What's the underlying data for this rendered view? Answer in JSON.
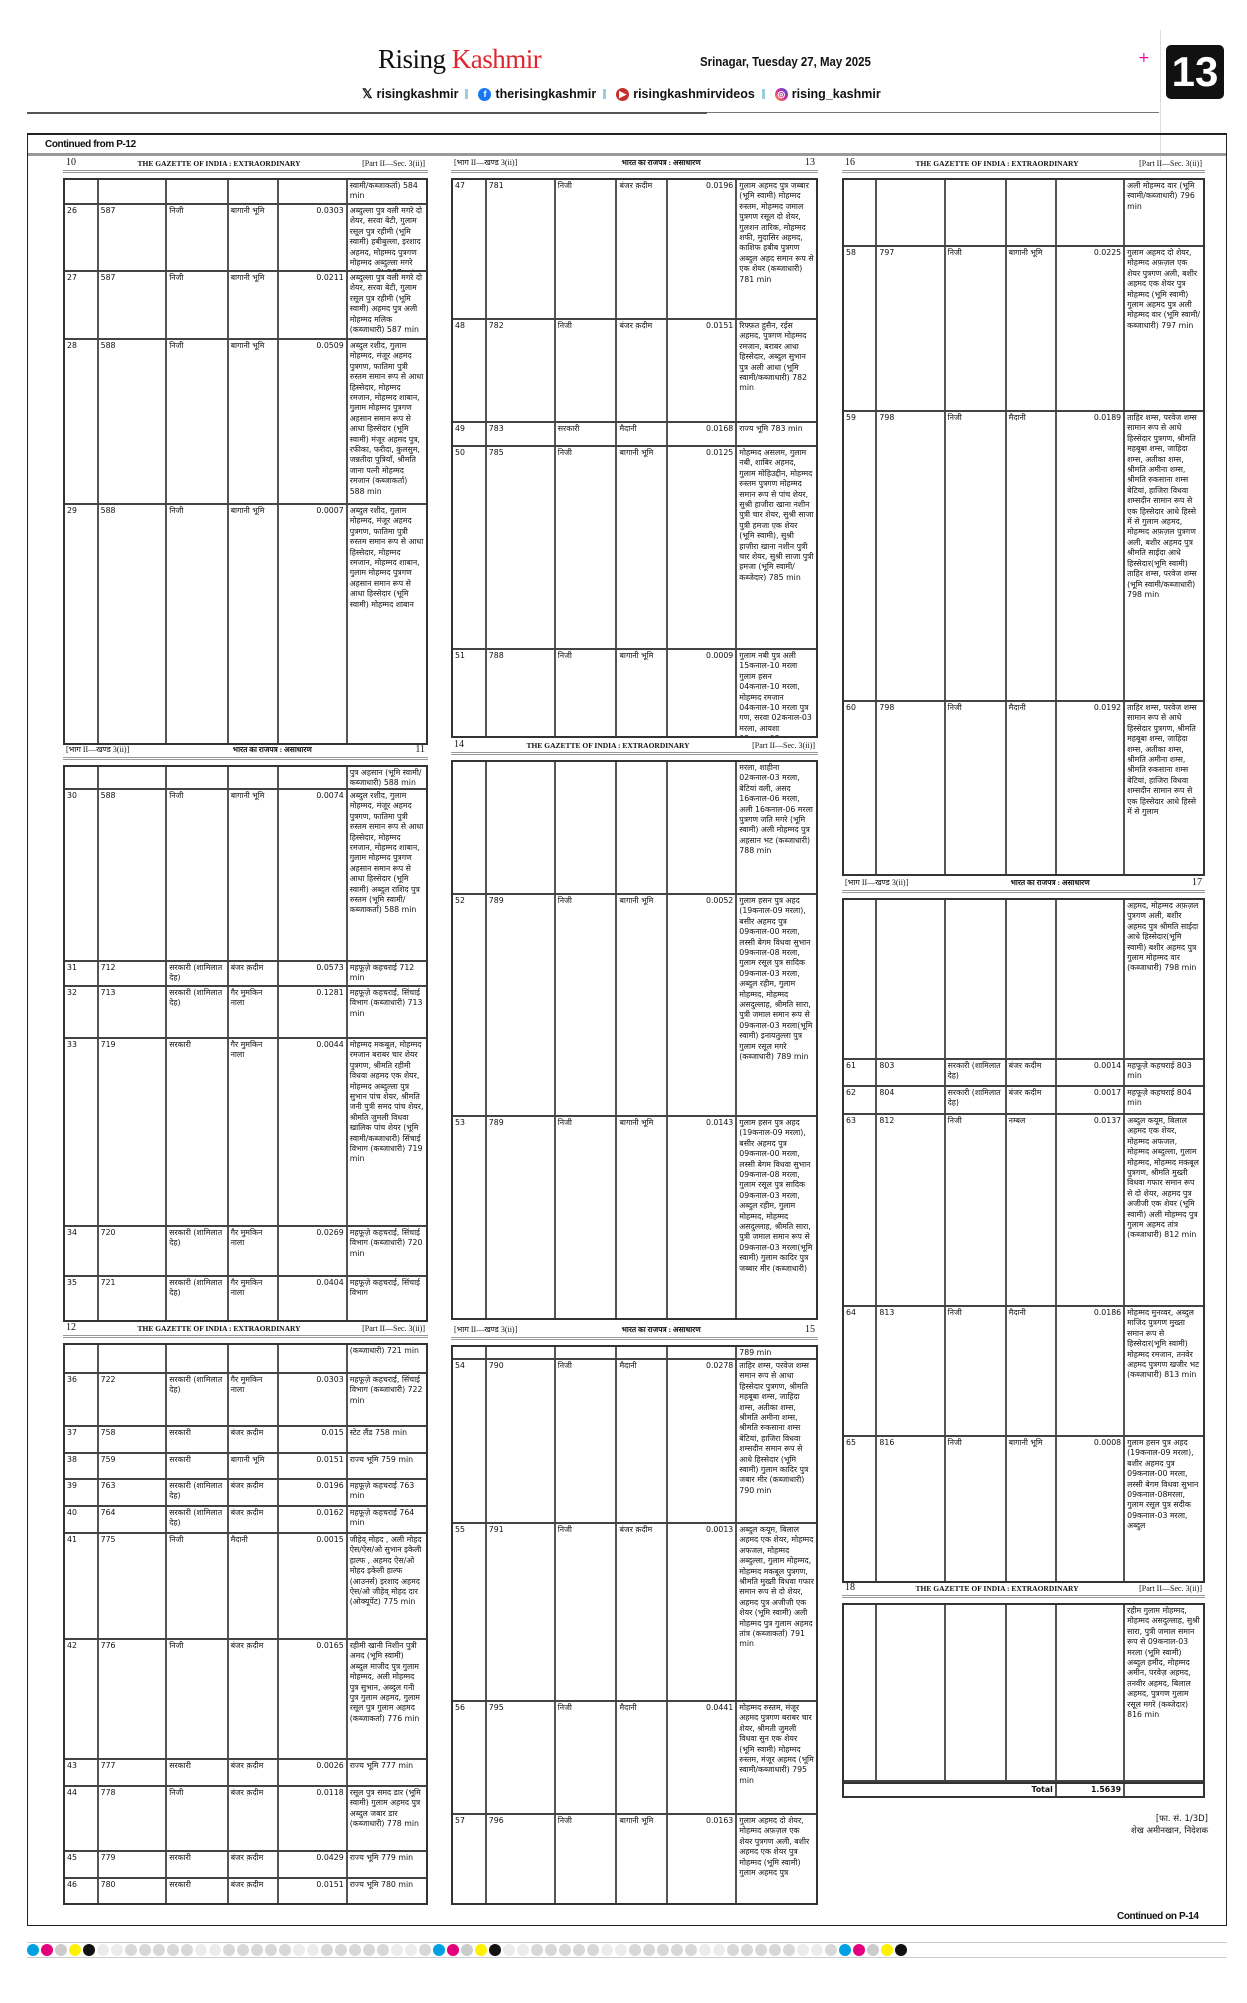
{
  "masthead": {
    "brand_first": "Rising",
    "brand_second": "Kashmir",
    "dateline": "Srinagar, Tuesday 27, May 2025",
    "page_number": "13",
    "brand_color": "#e0262d",
    "socials": [
      {
        "icon": "x-icon",
        "handle": "risingkashmir"
      },
      {
        "icon": "facebook-icon",
        "handle": "therisingkashmir",
        "color": "#1877f2"
      },
      {
        "icon": "youtube-icon",
        "handle": "risingkashmirvideos",
        "color": "#c4302b"
      },
      {
        "icon": "instagram-icon",
        "handle": "rising_kashmir",
        "color": "#d6249f"
      }
    ]
  },
  "continued_from": "Continued from P-12",
  "continued_on": "Continued on P-14",
  "gazette": {
    "en_title": "THE GAZETTE OF INDIA : EXTRAORDINARY",
    "en_part": "[Part II—Sec. 3(ii)]",
    "hi_title": "भारत का राजपत्र : असाधारण",
    "hi_part": "[भाग II—खण्ड 3(ii)]"
  },
  "pages": [
    {
      "no": "10",
      "lang": "en",
      "rows": [
        {
          "owner": "स्वामी/कब्जाकर्ता) 584 min"
        },
        {
          "sl": "26",
          "khasra": "587",
          "ownership": "निजी",
          "land": "बागानी भूमि",
          "area": "0.0303",
          "owner": "अब्दुल्ला पुत्र वली मगरे दो शेयर, सरवा बेटी, गुलाम रसूल पुत्र रहीमी (भूमि स्वामी) हबीबुल्ला, इरशाद अहमद, मोहम्मद पुत्रगण मोहम्मद अब्दुल्ला मगरे (कब्जाधारी) 587 min"
        },
        {
          "sl": "27",
          "khasra": "587",
          "ownership": "निजी",
          "land": "बागानी भूमि",
          "area": "0.0211",
          "owner": "अब्दुल्ला पुत्र वली मगरे दो शेयर, सरवा बेटी, गुलाम रसूल पुत्र रहीमी (भूमि स्वामी) अहमद पुत्र अली मोहम्मद मलिक (कब्जाधारी) 587 min"
        },
        {
          "sl": "28",
          "khasra": "588",
          "ownership": "निजी",
          "land": "बागानी भूमि",
          "area": "0.0509",
          "owner": "अब्दुल रशीद, गुलाम मोहम्मद, मंजूर अहमद पुत्रगण, फातिमा पुत्री रुस्तम समान रूप से आधा हिस्सेदार, मोहम्मद रमजान, मोहम्मद शाबान, गुलाम मोहम्मद पुत्रगण अहसान समान रूप से आधा हिस्सेदार (भूमि स्वामी) मंजूर अहमद पुत्र, रफीका, फरीदा, कुलसुम, जन्नतीदा पुत्रियाँ, श्रीमति जाना पत्नी मोहम्मद रमजान (कब्जाकर्ता) 588 min"
        },
        {
          "sl": "29",
          "khasra": "588",
          "ownership": "निजी",
          "land": "बागानी भूमि",
          "area": "0.0007",
          "owner": "अब्दुल रशीद, गुलाम मोहम्मद, मंजूर अहमद पुत्रगण, फातिमा पुत्री रुस्तम समान रूप से आधा हिस्सेदार, मोहम्मद रमजान, मोहम्मद शाबान, गुलाम मोहम्मद पुत्रगण अहसान समान रूप से आधा हिस्सेदार (भूमि स्वामी) मोहम्मद शाबान"
        }
      ]
    },
    {
      "no": "11",
      "lang": "hi",
      "rows": [
        {
          "owner": "पुत्र अहसान (भूमि स्वामी/कब्जाधारी) 588 min"
        },
        {
          "sl": "30",
          "khasra": "588",
          "ownership": "निजी",
          "land": "बागानी भूमि",
          "area": "0.0074",
          "owner": "अब्दुल रशीद, गुलाम मोहम्मद, मंजूर अहमद पुत्रगण, फातिमा पुत्री रुस्तम समान रूप से आधा हिस्सेदार, मोहम्मद रमजान, मोहम्मद शाबान, गुलाम मोहम्मद पुत्रगण अहसान समान रूप से आधा हिस्सेदार (भूमि स्वामी) अब्दुल राशिद पुत्र रुस्तम (भूमि स्वामी/कब्जाकर्ता) 588 min"
        },
        {
          "sl": "31",
          "khasra": "712",
          "ownership": "सरकारी (शामिलात देह)",
          "land": "बंजर क़दीम",
          "area": "0.0573",
          "owner": "महफूज़े कहचराई 712 min"
        },
        {
          "sl": "32",
          "khasra": "713",
          "ownership": "सरकारी (शामिलात देह)",
          "land": "गैर मुमकिन नाला",
          "area": "0.1281",
          "owner": "महफूज़े कहचराई, सिंचाई विभाग (कब्जाधारी) 713 min"
        },
        {
          "sl": "33",
          "khasra": "719",
          "ownership": "सरकारी",
          "land": "गैर मुमकिन नाला",
          "area": "0.0044",
          "owner": "मोहम्मद मकबूल, मोहम्मद रमजान बराबर चार शेयर पुत्रगण, श्रीमति रहीमी विधवा अहमद एक शेयर, मोहम्मद अब्दुल्ला पुत्र सुभान पांच शेयर, श्रीमति जनी पुत्री समद पांच शेयर, श्रीमति जुमली विधवा खालिक पांच शेयर (भूमि स्वामी/कब्जाधारी) सिंचाई विभाग (कब्जाधारी) 719 min"
        },
        {
          "sl": "34",
          "khasra": "720",
          "ownership": "सरकारी (शामिलात देह)",
          "land": "गैर मुमकिन नाला",
          "area": "0.0269",
          "owner": "महफूज़े कहचराई, सिंचाई विभाग (कब्जाधारी) 720 min"
        },
        {
          "sl": "35",
          "khasra": "721",
          "ownership": "सरकारी (शामिलात देह)",
          "land": "गैर मुमकिन नाला",
          "area": "0.0404",
          "owner": "महफूज़े कहचराई, सिंचाई विभाग"
        }
      ]
    },
    {
      "no": "12",
      "lang": "en",
      "rows": [
        {
          "owner": "(कब्जाधारी) 721 min"
        },
        {
          "sl": "36",
          "khasra": "722",
          "ownership": "सरकारी (शामिलात देह)",
          "land": "गैर मुमकिन नाला",
          "area": "0.0303",
          "owner": "महफूज़े कहचराई, सिंचाई विभाग (कब्जाधारी) 722 min"
        },
        {
          "sl": "37",
          "khasra": "758",
          "ownership": "सरकारी",
          "land": "बंजर क़दीम",
          "area": "0.015",
          "owner": "स्टेट लैंड 758 min"
        },
        {
          "sl": "38",
          "khasra": "759",
          "ownership": "सरकारी",
          "land": "बागानी भूमि",
          "area": "0.0151",
          "owner": "राज्य भूमि 759 min"
        },
        {
          "sl": "39",
          "khasra": "763",
          "ownership": "सरकारी (शामिलात देह)",
          "land": "बंजर क़दीम",
          "area": "0.0196",
          "owner": "महफूज़े कहचराई 763 min"
        },
        {
          "sl": "40",
          "khasra": "764",
          "ownership": "सरकारी (शामिलात देह)",
          "land": "बंजर क़दीम",
          "area": "0.0162",
          "owner": "महफूज़े कहचराई 764 min"
        },
        {
          "sl": "41",
          "khasra": "775",
          "ownership": "निजी",
          "land": "मैदानी",
          "area": "0.0015",
          "owner": "जीहेव् मोहद , अली मोहद ऐस/ऐस/ओ सुभान इकेली हाल्फ , अहमद ऐस/ओ मोहद इकेली हाल्फ (आउनर्स) इरशाद अहमद ऐस/ओ जीहेव् मोहद दार (ओक्यूपेंट) 775 min"
        },
        {
          "sl": "42",
          "khasra": "776",
          "ownership": "निजी",
          "land": "बंजर क़दीम",
          "area": "0.0165",
          "owner": "रहीमी खानी निशीन पुत्री अमद (भूमि स्वामी) अब्दुल माजीद पुत्र गुलाम मोहम्मद, अली मोहम्मद पुत्र सुभान, अब्दुल गनी पुत्र गुलाम अहमद, गुलाम रसूल पुत्र गुलाम अहमद (कब्जाकर्ता) 776 min"
        },
        {
          "sl": "43",
          "khasra": "777",
          "ownership": "सरकारी",
          "land": "बंजर क़दीम",
          "area": "0.0026",
          "owner": "राज्य भूमि 777 min"
        },
        {
          "sl": "44",
          "khasra": "778",
          "ownership": "निजी",
          "land": "बंजर क़दीम",
          "area": "0.0118",
          "owner": "रसूल पुत्र समद डार (भूमि स्वामी) गुलाम अहमद पुत्र अब्दुल जबार डार (कब्जाधारी) 778 min"
        },
        {
          "sl": "45",
          "khasra": "779",
          "ownership": "सरकारी",
          "land": "बंजर क़दीम",
          "area": "0.0429",
          "owner": "राज्य भूमि 779 min"
        },
        {
          "sl": "46",
          "khasra": "780",
          "ownership": "सरकारी",
          "land": "बंजर क़दीम",
          "area": "0.0151",
          "owner": "राज्य भूमि 780 min"
        }
      ]
    },
    {
      "no": "13",
      "lang": "hi",
      "rows": [
        {
          "sl": "47",
          "khasra": "781",
          "ownership": "निजी",
          "land": "बंजर क़दीम",
          "area": "0.0196",
          "owner": "गुलाम अहमद पुत्र जब्बार (भूमि स्वामी) मोहम्मद रुस्तम, मोहम्मद जमाल पुत्रगण रसूल दो शेयर, गुलशन तारिक, मोहम्मद शफी, मुदासिर अहमद, काशिफ हबीब पुत्रगण अब्दुल अहद समान रूप से एक शेयर (कब्जाधारी) 781 min"
        },
        {
          "sl": "48",
          "khasra": "782",
          "ownership": "निजी",
          "land": "बंजर क़दीम",
          "area": "0.0151",
          "owner": "रिफ्फ़त हुसैन, रईस अहमद, पुत्रगण मोहम्मद रमजान, बराबर आधा हिस्सेदार, अब्दुल सुभान पुत्र अली आधा (भूमि स्वामी/कब्जाधारी) 782 min"
        },
        {
          "sl": "49",
          "khasra": "783",
          "ownership": "सरकारी",
          "land": "मैदानी",
          "area": "0.0168",
          "owner": "राज्य भूमि 783 min"
        },
        {
          "sl": "50",
          "khasra": "785",
          "ownership": "निजी",
          "land": "बागानी भूमि",
          "area": "0.0125",
          "owner": "मोहम्मद असलम, गुलाम नबी, शाबिर अहमद, गुलाम मोहिउद्दीन, मोहम्मद रुस्तम पुत्रगण मोहम्मद समान रूप से पांच शेयर, सुश्री हाजीरा खाना नशीन पुत्री चार शेयर, सुश्री साजा पुत्री हमजा एक शेयर (भूमि स्वामी), सुश्री हाजीरा खाना नशीन पुत्री चार शेयर, सुश्री साजा पुत्री हमजा (भूमि स्वामी/कब्जेदार) 785 min"
        },
        {
          "sl": "51",
          "khasra": "788",
          "ownership": "निजी",
          "land": "बागानी भूमि",
          "area": "0.0009",
          "owner": "गुलाम नबी पुत्र अली 15कनाल-10 मरला गुलाम हसन 04कनाल-10 मरला, मोहम्मद रमजान 04कनाल-10 मरला पुत्र गण, सरवा 02कनाल-03 मरला, आयशा 02कनाल-03"
        }
      ]
    },
    {
      "no": "14",
      "lang": "en",
      "rows": [
        {
          "owner": "मरला, शाहीना 02कनाल-03 मरला, बेटियां वली, असद 16कनाल-06 मरला, अली 16कनाल-06 मरला पुत्रगण जति मगरे (भूमि स्वामी) अली मोहम्मद पुत्र अहसान भट (कब्जाधारी) 788 min"
        },
        {
          "sl": "52",
          "khasra": "789",
          "ownership": "निजी",
          "land": "बागानी भूमि",
          "area": "0.0052",
          "owner": "गुलाम हसन पुत्र अहद (19कनाल-09 मरला), बसीर अहमद पुत्र 09कनाल-00 मरला, लस्सी बेगम विधवा सुभान 09कनाल-08 मरला, गुलाम रसूल पुत्र सादिक 09कनाल-03 मरला, अब्दुल रहीम, गुलाम मोहम्मद, मोहम्मद असदुल्लाह, श्रीमति सारा, पुत्री जमाल समान रूप से 09कनाल-03 मरला(भूमि स्वामी) इनायतुल्ला पुत्र गुलाम रसूल मगरे (कब्जाधारी) 789 min"
        },
        {
          "sl": "53",
          "khasra": "789",
          "ownership": "निजी",
          "land": "बागानी भूमि",
          "area": "0.0143",
          "owner": "गुलाम हसन पुत्र अहद (19कनाल-09 मरला), बसीर अहमद पुत्र 09कनाल-00 मरला, लस्सी बेगम विधवा सुभान 09कनाल-08 मरला, गुलाम रसूल पुत्र सादिक 09कनाल-03 मरला, अब्दुल रहीम, गुलाम मोहम्मद, मोहम्मद असदुल्लाह, श्रीमति सारा, पुत्री जमाल समान रूप से 09कनाल-03 मरला(भूमि स्वामी) गुलाम कादिर पुत्र जब्बार मीर (कब्जाधारी)"
        }
      ]
    },
    {
      "no": "15",
      "lang": "hi",
      "rows": [
        {
          "owner": "789 min"
        },
        {
          "sl": "54",
          "khasra": "790",
          "ownership": "निजी",
          "land": "मैदानी",
          "area": "0.0278",
          "owner": "ताहिर शम्स, परवेज शम्स समान रूप से आधा हिस्सेदार पुत्रगण, श्रीमति महबूबा शम्स, जाहिदा शम्स, अतीका शम्स, श्रीमति अमीना शम्स, श्रीमति रुकसाना शम्स बेटियां, हाजिरा विधवा शम्सदीन समान रूप से आधे हिस्सेदार (भूमि स्वामी) गुलाम कादिर पुत्र जबार मीर (कब्जाधारी) 790 min"
        },
        {
          "sl": "55",
          "khasra": "791",
          "ownership": "निजी",
          "land": "बंजर क़दीम",
          "area": "0.0013",
          "owner": "अब्दुल कयूम, बिलाल अहमद एक शेयर, मोहम्मद अफजल, मोहम्मद अब्दुल्ला, गुलाम मोहम्मद, मोहम्मद मकबूल पुत्रगण, श्रीमति मुख्ती विधवा गफार समान रूप से दो शेयर, अहमद पुत्र अजीजी एक शेयर (भूमि स्वामी) अली मोहम्मद पुत्र गुलाम अहमद तांत्र (कब्जाकर्ता) 791 min"
        },
        {
          "sl": "56",
          "khasra": "795",
          "ownership": "निजी",
          "land": "मैदानी",
          "area": "0.0441",
          "owner": "मोहम्मद रुस्तम, मंजूर अहमद पुत्रगण बराबर चार शेयर, श्रीमती जुमली विधवा सुन एक शेयर (भूमि स्वामी) मोहम्मद रुस्तम, मंजूर अहमद (भूमि स्वामी/कब्जाधारी) 795 min"
        },
        {
          "sl": "57",
          "khasra": "796",
          "ownership": "निजी",
          "land": "बागानी भूमि",
          "area": "0.0163",
          "owner": "गुलाम अहमद दो शेयर, मोहम्मद अफ़ज़ल एक शेयर पुत्रगण अली, बशीर अहमद एक शेयर पुत्र मोहम्मद (भूमि स्वामी) गुलाम अहमद पुत्र"
        }
      ]
    },
    {
      "no": "16",
      "lang": "en",
      "rows": [
        {
          "owner": "अली मोहम्मद वार (भूमि स्वामी/कब्जाधारी) 796 min"
        },
        {
          "sl": "58",
          "khasra": "797",
          "ownership": "निजी",
          "land": "बागानी भूमि",
          "area": "0.0225",
          "owner": "गुलाम अहमद दो शेयर, मोहम्मद अफ़ज़ल एक शेयर पुत्रगण अली, बशीर अहमद एक शेयर पुत्र मोहम्मद (भूमि स्वामी) गुलाम अहमद पुत्र अली मोहम्मद वार (भूमि स्वामी/कब्जाधारी) 797 min"
        },
        {
          "sl": "59",
          "khasra": "798",
          "ownership": "निजी",
          "land": "मैदानी",
          "area": "0.0189",
          "owner": "ताहिर शम्स, परवेज शम्स सामान रूप से आधे हिस्सेदार पुत्रगण, श्रीमति महबूबा शम्स, जाहिदा शम्स, अतीका शम्स, श्रीमति अमीना शम्स, श्रीमति रुकसाना शम्स बेटियां, हाजिरा विधवा शम्सदीन सामान रूप से एक हिस्सेदार आधे हिस्से में से गुलाम अहमद, मोहम्मद अफ़ज़ल पुत्रगण अली, बशीर अहमद पुत्र श्रीमति साईदा आधे हिस्सेदार(भूमि स्वामी) ताहिर शम्स, परवेज शम्स (भूमि स्वामी/कब्जाधारी) 798 min"
        },
        {
          "sl": "60",
          "khasra": "798",
          "ownership": "निजी",
          "land": "मैदानी",
          "area": "0.0192",
          "owner": "ताहिर शम्स, परवेज शम्स सामान रूप से आधे हिस्सेदार पुत्रगण, श्रीमति महबूबा शम्स, जाहिदा शम्स, अतीका शम्स, श्रीमति अमीना शम्स, श्रीमति रुकसाना शम्स बेटियां, हाजिरा विधवा शम्सदीन सामान रूप से एक हिस्सेदार आधे हिस्से में से गुलाम"
        }
      ]
    },
    {
      "no": "17",
      "lang": "hi",
      "rows": [
        {
          "owner": "अहमद, मोहम्मद अफ़ज़ल पुत्रगण अली, बशीर अहमद पुत्र श्रीमति साईदा आधे हिस्सेदार(भूमि स्वामी) बशीर अहमद पुत्र गुलाम मोहम्मद वार (कब्जाधारी) 798 min"
        },
        {
          "sl": "61",
          "khasra": "803",
          "ownership": "सरकारी (शामिलात देह)",
          "land": "बंजर कदीम",
          "area": "0.0014",
          "owner": "महफूज़े कहचराई 803 min"
        },
        {
          "sl": "62",
          "khasra": "804",
          "ownership": "सरकारी (शामिलात देह)",
          "land": "बंजर कदीम",
          "area": "0.0017",
          "owner": "महफूज़े कहचराई 804 min"
        },
        {
          "sl": "63",
          "khasra": "812",
          "ownership": "निजी",
          "land": "नम्बल",
          "area": "0.0137",
          "owner": "अब्दुल कयूम, बिलाल अहमद एक शेयर, मोहम्मद अफजल, मोहम्मद अब्दुल्ला, गुलाम मोहम्मद, मोहम्मद मकबूल पुत्रगण, श्रीमति मुख्ती विधवा गफार समान रूप से दो शेयर, अहमद पुत्र अजीजी एक शेयर (भूमि स्वामी) अली मोहम्मद पुत्र गुलाम अहमद तांत्र (कब्जाधारी) 812 min"
        },
        {
          "sl": "64",
          "khasra": "813",
          "ownership": "निजी",
          "land": "मैदानी",
          "area": "0.0186",
          "owner": "मोहम्मद मुनव्वर, अब्दुल माजिद पुत्रगण मुख्ता समान रूप से हिस्सेदार(भूमि स्वामी) मोहम्मद रमजान, तनवेर अहमद पुत्रगण खजीर भट (कब्जाधारी) 813 min"
        },
        {
          "sl": "65",
          "khasra": "816",
          "ownership": "निजी",
          "land": "बागानी भूमि",
          "area": "0.0008",
          "owner": "गुलाम हसन पुत्र अहद (19कनाल-09 मरला), बशीर अहमद पुत्र 09कनाल-00 मरला, लस्सी बेगम विधवा सुभान 09कनाल-08मरला, गुलाम रसूल पुत्र सदीक 09कनाल-03 मरला, अब्दुल"
        }
      ]
    },
    {
      "no": "18",
      "lang": "en",
      "rows": [
        {
          "owner": "रहीम गुलाम मोहम्मद, मोहम्मद असदुल्लाह, सुश्री सारा, पुत्री जमाल समान रूप से 09कनाल-03 मरला (भूमि स्वामी) अब्दुल हमीद, मोहम्मद अमीन, परवेज़ अहमद, तनवीर अहमद, बिलाल अहमद, पुत्रगण गुलाम रसूल मगरे (कब्जेदार) 816 min"
        }
      ]
    }
  ],
  "total": {
    "label": "Total",
    "value": "1.5639"
  },
  "signature": {
    "file_no": "[फा. सं. 1/3D]",
    "name": "शेख अमीनखान, निदेशक"
  }
}
